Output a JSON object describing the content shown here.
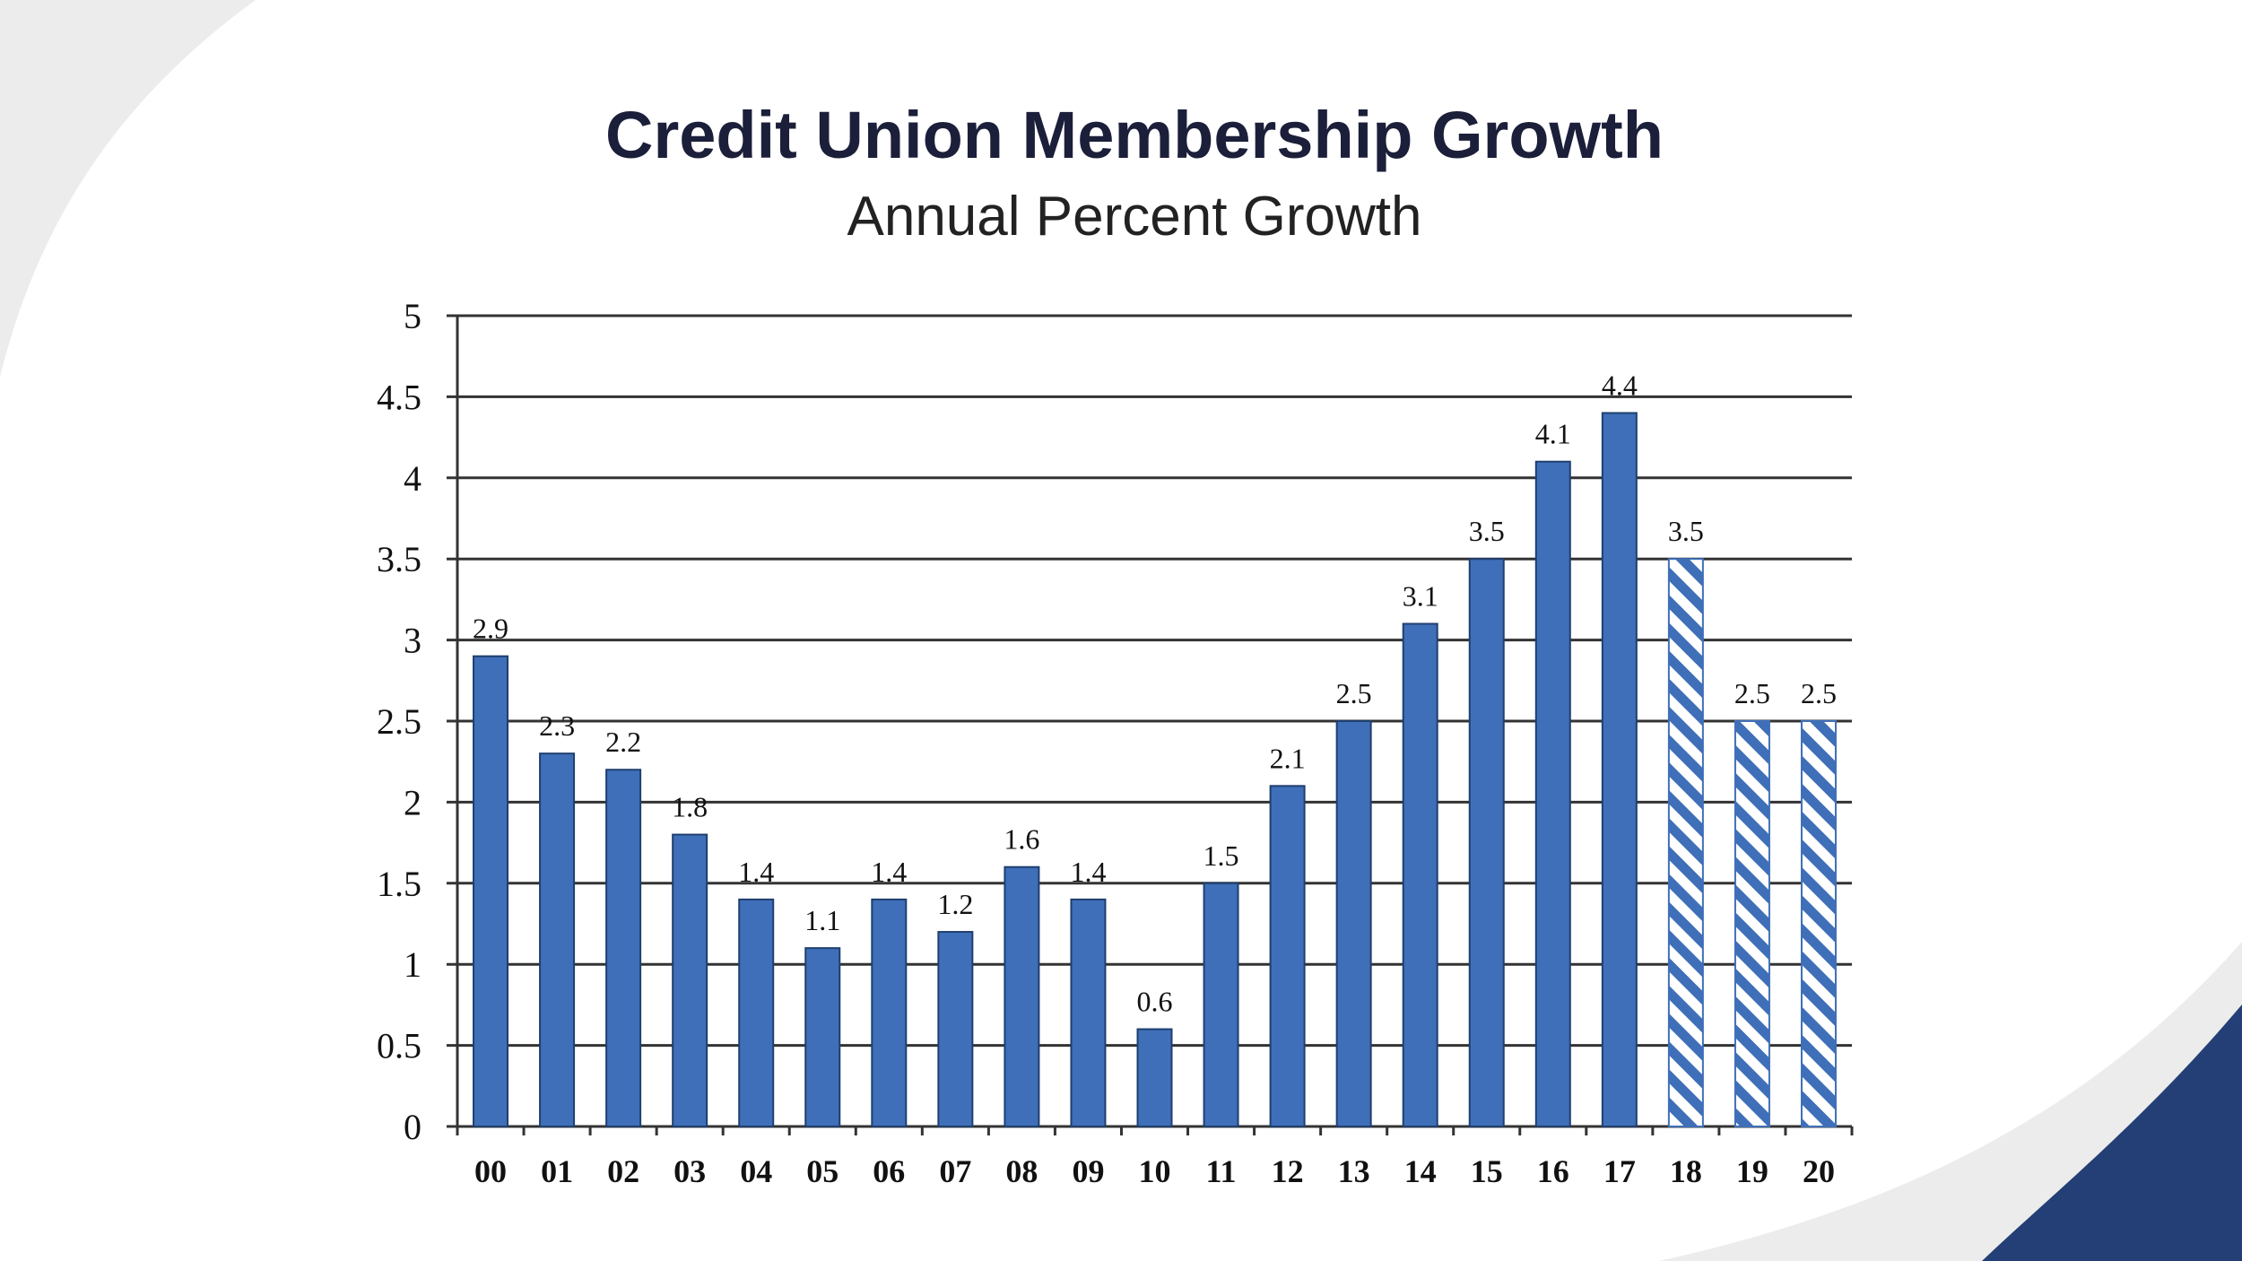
{
  "colors": {
    "bar": "#3f6fb8",
    "bar_stroke": "#1f3f6f",
    "hatch_light": "#ffffff",
    "gridline": "#333333",
    "background_swoosh": "#ececec",
    "corner_accent": "#233f75"
  },
  "chart_data": {
    "type": "bar",
    "title": "Credit Union Membership Growth",
    "subtitle": "Annual Percent Growth",
    "xlabel": "",
    "ylabel": "",
    "ylim": [
      0,
      5
    ],
    "yticks": [
      "0",
      "0.5",
      "1",
      "1.5",
      "2",
      "2.5",
      "3",
      "3.5",
      "4",
      "4.5",
      "5"
    ],
    "ytick_values": [
      0,
      0.5,
      1,
      1.5,
      2,
      2.5,
      3,
      3.5,
      4,
      4.5,
      5
    ],
    "grid": true,
    "categories": [
      "00",
      "01",
      "02",
      "03",
      "04",
      "05",
      "06",
      "07",
      "08",
      "09",
      "10",
      "11",
      "12",
      "13",
      "14",
      "15",
      "16",
      "17",
      "18",
      "19",
      "20"
    ],
    "values": [
      2.9,
      2.3,
      2.2,
      1.8,
      1.4,
      1.1,
      1.4,
      1.2,
      1.6,
      1.4,
      0.6,
      1.5,
      2.1,
      2.5,
      3.1,
      3.5,
      4.1,
      4.4,
      3.5,
      2.5,
      2.5
    ],
    "value_labels": [
      "2.9",
      "2.3",
      "2.2",
      "1.8",
      "1.4",
      "1.1",
      "1.4",
      "1.2",
      "1.6",
      "1.4",
      "0.6",
      "1.5",
      "2.1",
      "2.5",
      "3.1",
      "3.5",
      "4.1",
      "4.4",
      "3.5",
      "2.5",
      "2.5"
    ],
    "hatched": [
      false,
      false,
      false,
      false,
      false,
      false,
      false,
      false,
      false,
      false,
      false,
      false,
      false,
      false,
      false,
      false,
      false,
      false,
      true,
      true,
      true
    ]
  }
}
